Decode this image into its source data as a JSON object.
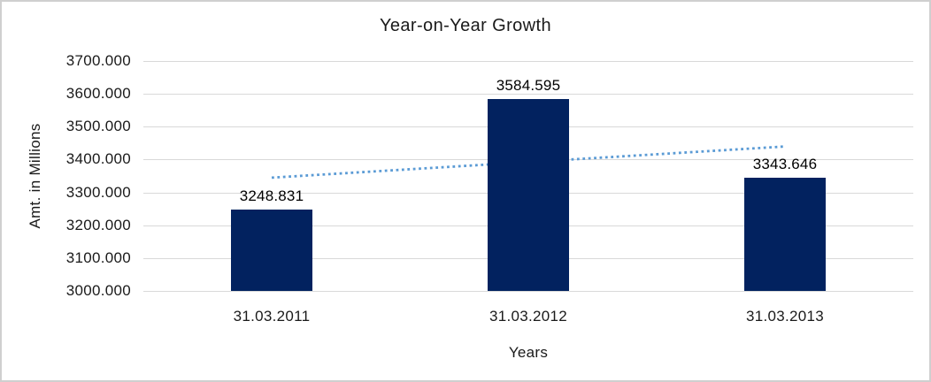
{
  "chart_data": {
    "type": "bar",
    "title": "Year-on-Year Growth",
    "xlabel": "Years",
    "ylabel": "Amt. in Millions",
    "categories": [
      "31.03.2011",
      "31.03.2012",
      "31.03.2013"
    ],
    "values": [
      3248.831,
      3584.595,
      3343.646
    ],
    "data_labels": [
      "3248.831",
      "3584.595",
      "3343.646"
    ],
    "ylim": [
      3000,
      3700
    ],
    "ytick_labels": [
      "3700.000",
      "3600.000",
      "3500.000",
      "3400.000",
      "3300.000",
      "3200.000",
      "3100.000",
      "3000.000"
    ],
    "grid": true,
    "legend": "none",
    "trendline": {
      "type": "linear",
      "style": "dotted",
      "start_value": 3344.9,
      "end_value": 3439.8
    },
    "colors": {
      "bar": "#02225f",
      "trendline": "#5b9bd5",
      "gridline": "#d9d9d9",
      "text": "#1a1a1a",
      "chart_border": "#cfcfcf",
      "background": "#ffffff"
    }
  }
}
